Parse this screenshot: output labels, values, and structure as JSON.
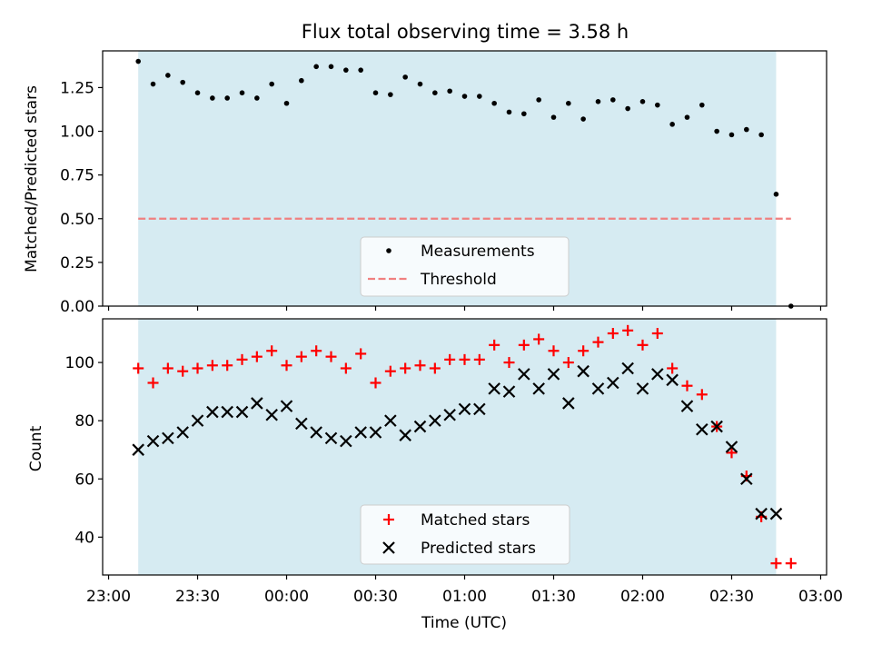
{
  "title": "Flux total observing time = 3.58 h",
  "colors": {
    "shade": "#add8e6",
    "threshold": "#f08080",
    "matched": "#ff0000",
    "predicted": "#000000",
    "measure": "#000000"
  },
  "chart_data": [
    {
      "type": "scatter",
      "ylabel": "Matched/Predicted stars",
      "ylim": [
        0,
        1.46
      ],
      "xlim_min": [
        -2,
        242
      ],
      "shaded_span_min": [
        10,
        225
      ],
      "yticks": [
        0.0,
        0.25,
        0.5,
        0.75,
        1.0,
        1.25
      ],
      "ytick_labels": [
        "0.00",
        "0.25",
        "0.50",
        "0.75",
        "1.00",
        "1.25"
      ],
      "legend": [
        "Measurements",
        "Threshold"
      ],
      "threshold": {
        "value": 0.5,
        "x_range_min": [
          10,
          230
        ]
      },
      "series": [
        {
          "name": "Measurements",
          "x_min": [
            10,
            15,
            20,
            25,
            30,
            35,
            40,
            45,
            50,
            55,
            60,
            65,
            70,
            75,
            80,
            85,
            90,
            95,
            100,
            105,
            110,
            115,
            120,
            125,
            130,
            135,
            140,
            145,
            150,
            155,
            160,
            165,
            170,
            175,
            180,
            185,
            190,
            195,
            200,
            205,
            210,
            215,
            220,
            225,
            230
          ],
          "values": [
            1.4,
            1.27,
            1.32,
            1.28,
            1.22,
            1.19,
            1.19,
            1.22,
            1.19,
            1.27,
            1.16,
            1.29,
            1.37,
            1.37,
            1.35,
            1.35,
            1.22,
            1.21,
            1.31,
            1.27,
            1.22,
            1.23,
            1.2,
            1.2,
            1.16,
            1.11,
            1.1,
            1.18,
            1.08,
            1.16,
            1.07,
            1.17,
            1.18,
            1.13,
            1.17,
            1.15,
            1.04,
            1.08,
            1.15,
            1.0,
            0.98,
            1.01,
            0.98,
            0.64,
            0.0
          ]
        }
      ]
    },
    {
      "type": "scatter",
      "ylabel": "Count",
      "xlabel": "Time (UTC)",
      "ylim": [
        27,
        115
      ],
      "xlim_min": [
        -2,
        242
      ],
      "shaded_span_min": [
        10,
        225
      ],
      "yticks": [
        40,
        60,
        80,
        100
      ],
      "ytick_labels": [
        "40",
        "60",
        "80",
        "100"
      ],
      "xticks_min": [
        0,
        30,
        60,
        90,
        120,
        150,
        180,
        210,
        240
      ],
      "xtick_labels": [
        "23:00",
        "23:30",
        "00:00",
        "00:30",
        "01:00",
        "01:30",
        "02:00",
        "02:30",
        "03:00"
      ],
      "legend": [
        "Matched stars",
        "Predicted stars"
      ],
      "x_min": [
        10,
        15,
        20,
        25,
        30,
        35,
        40,
        45,
        50,
        55,
        60,
        65,
        70,
        75,
        80,
        85,
        90,
        95,
        100,
        105,
        110,
        115,
        120,
        125,
        130,
        135,
        140,
        145,
        150,
        155,
        160,
        165,
        170,
        175,
        180,
        185,
        190,
        195,
        200,
        205,
        210,
        215,
        220,
        225,
        230
      ],
      "series": [
        {
          "name": "Matched stars",
          "marker": "plus",
          "values": [
            98,
            93,
            98,
            97,
            98,
            99,
            99,
            101,
            102,
            104,
            99,
            102,
            104,
            102,
            98,
            103,
            93,
            97,
            98,
            99,
            98,
            101,
            101,
            101,
            106,
            100,
            106,
            108,
            104,
            100,
            104,
            107,
            110,
            111,
            106,
            110,
            98,
            92,
            89,
            78,
            69,
            61,
            47,
            31,
            31
          ]
        },
        {
          "name": "Predicted stars",
          "marker": "x",
          "values": [
            70,
            73,
            74,
            76,
            80,
            83,
            83,
            83,
            86,
            82,
            85,
            79,
            76,
            74,
            73,
            76,
            76,
            80,
            75,
            78,
            80,
            82,
            84,
            84,
            91,
            90,
            96,
            91,
            96,
            86,
            97,
            91,
            93,
            98,
            91,
            96,
            94,
            85,
            77,
            78,
            71,
            60,
            48,
            48,
            null
          ]
        }
      ]
    }
  ]
}
